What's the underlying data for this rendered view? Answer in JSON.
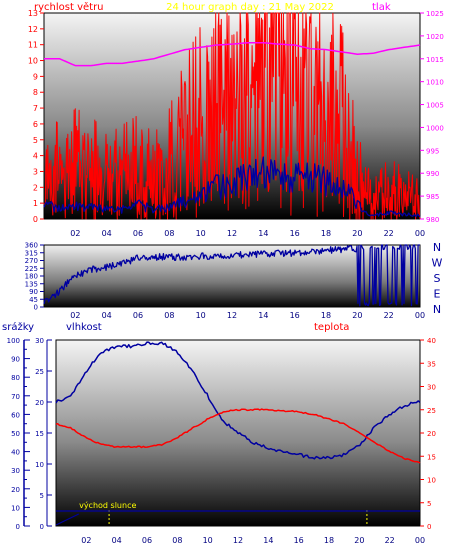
{
  "header": {
    "title": "24 hour graph day : 21 May 2022",
    "left_label": "rychlost větru",
    "right_label": "tlak",
    "direction_letters": [
      "N",
      "W",
      "S",
      "E",
      "N"
    ]
  },
  "colors": {
    "red": "#ff0000",
    "blue": "#0000a0",
    "magenta": "#ff00ff",
    "yellow": "#ffff00",
    "frame": "#000000",
    "sunrise_marker": "#ffff00"
  },
  "bottom_labels": {
    "precip": "srážky",
    "humidity": "vlhkost",
    "temp": "teplota",
    "sunrise_text": "východ slunce"
  },
  "chart_data": [
    {
      "type": "line",
      "title": "24 hour graph day : 21 May 2022",
      "x_ticks": [
        "02",
        "04",
        "06",
        "08",
        "10",
        "12",
        "14",
        "16",
        "18",
        "20",
        "22",
        "00"
      ],
      "y_left": {
        "label": "rychlost větru",
        "range": [
          0,
          13
        ],
        "ticks": [
          "0",
          "1",
          "2",
          "3",
          "4",
          "5",
          "6",
          "7",
          "8",
          "9",
          "10",
          "11",
          "12",
          "13"
        ]
      },
      "y_right": {
        "label": "tlak",
        "range": [
          980,
          1025
        ],
        "ticks": [
          "980",
          "985",
          "990",
          "995",
          "1000",
          "1005",
          "1010",
          "1015",
          "1020",
          "1025"
        ]
      },
      "series": [
        {
          "name": "rychlost větru",
          "axis": "left",
          "color": "#ff0000",
          "x": [
            0,
            1,
            2,
            3,
            4,
            5,
            6,
            7,
            8,
            9,
            10,
            11,
            12,
            13,
            14,
            15,
            16,
            17,
            18,
            19,
            20,
            20.5,
            21,
            22,
            23,
            24
          ],
          "y": [
            3,
            2.5,
            3,
            2.8,
            2.2,
            2.5,
            2.8,
            2.2,
            3,
            4.5,
            5.5,
            6.5,
            6.8,
            7.2,
            7.5,
            7.4,
            7,
            6.8,
            6.2,
            5.5,
            3,
            1.5,
            0.8,
            1.5,
            1.2,
            0.8
          ]
        },
        {
          "axis": "left",
          "color": "#0000a0",
          "x": [
            0,
            1,
            2,
            3,
            4,
            5,
            6,
            7,
            8,
            9,
            10,
            11,
            12,
            13,
            14,
            15,
            16,
            17,
            18,
            19,
            20,
            20.5,
            21,
            22,
            23,
            24
          ],
          "y": [
            1,
            0.6,
            0.9,
            0.7,
            0.6,
            0.6,
            0.9,
            0.6,
            0.7,
            1.2,
            1.5,
            2,
            2.2,
            2.6,
            2.8,
            2.9,
            2.7,
            2.6,
            2.4,
            2.2,
            1,
            0.4,
            0.2,
            0.4,
            0.3,
            0.2
          ]
        },
        {
          "name": "tlak",
          "axis": "right",
          "color": "#ff00ff",
          "x": [
            0,
            1,
            2,
            3,
            4,
            5,
            6,
            7,
            8,
            9,
            10,
            11,
            12,
            13,
            14,
            15,
            16,
            17,
            18,
            19,
            20,
            21,
            22,
            23,
            24
          ],
          "y": [
            1015,
            1015,
            1013.5,
            1013.5,
            1014,
            1014,
            1014.5,
            1015,
            1016,
            1017,
            1017.5,
            1018,
            1018.2,
            1018.5,
            1018.5,
            1018.2,
            1018,
            1017.2,
            1017,
            1016.5,
            1016,
            1016.2,
            1017,
            1017.5,
            1018
          ]
        }
      ]
    },
    {
      "type": "line",
      "title": "",
      "x_ticks": [
        "02",
        "04",
        "06",
        "08",
        "10",
        "12",
        "14",
        "16",
        "18",
        "20",
        "22",
        "00"
      ],
      "y_left": {
        "range": [
          0,
          360
        ],
        "ticks": [
          "0",
          "45",
          "90",
          "135",
          "180",
          "225",
          "270",
          "315",
          "360"
        ]
      },
      "y_right": {
        "labels": [
          "N",
          "W",
          "S",
          "E",
          "N"
        ]
      },
      "series": [
        {
          "color": "#0000a0",
          "x": [
            0,
            0.5,
            1,
            1.5,
            2,
            2.5,
            3,
            3.5,
            4,
            4.5,
            5,
            5.5,
            6,
            7,
            8,
            9,
            10,
            11,
            12,
            13,
            14,
            15,
            16,
            17,
            18,
            19,
            20,
            21,
            22,
            23,
            24
          ],
          "y": [
            30,
            60,
            90,
            140,
            180,
            200,
            215,
            225,
            230,
            240,
            250,
            265,
            285,
            290,
            290,
            292,
            295,
            297,
            300,
            305,
            308,
            310,
            315,
            320,
            330,
            335,
            340,
            345,
            350,
            352,
            355
          ]
        }
      ]
    },
    {
      "type": "line",
      "title": "",
      "x_ticks": [
        "02",
        "04",
        "06",
        "08",
        "10",
        "12",
        "14",
        "16",
        "18",
        "20",
        "22",
        "00"
      ],
      "y_precip": {
        "label": "srážky",
        "range": [
          0,
          100
        ],
        "ticks": [
          "0",
          "10",
          "20",
          "30",
          "40",
          "50",
          "60",
          "70",
          "80",
          "90",
          "100"
        ]
      },
      "y_humidity": {
        "label": "vlhkost",
        "range": [
          0,
          30
        ],
        "ticks": [
          "0",
          "5",
          "10",
          "15",
          "20",
          "25",
          "30"
        ]
      },
      "y_temp": {
        "label": "teplota",
        "range": [
          0,
          40
        ],
        "ticks": [
          "0",
          "5",
          "10",
          "15",
          "20",
          "25",
          "30",
          "35",
          "40"
        ]
      },
      "annotations": [
        {
          "text": "východ slunce",
          "x": 3.5,
          "color": "#ffff00"
        }
      ],
      "series": [
        {
          "name": "vlhkost",
          "axis": "humidity",
          "color": "#0000a0",
          "x": [
            0,
            1,
            2,
            3,
            4,
            5,
            6,
            7,
            8,
            9,
            10,
            11,
            12,
            13,
            14,
            15,
            16,
            17,
            18,
            19,
            20,
            21,
            22,
            23,
            24
          ],
          "y": [
            20,
            21,
            25,
            28,
            29,
            29,
            29.5,
            29.5,
            28,
            25,
            21,
            17,
            15,
            13.5,
            12.5,
            12,
            11.5,
            11,
            11,
            11.5,
            13,
            16,
            18,
            19.5,
            20
          ]
        },
        {
          "name": "teplota",
          "axis": "temp",
          "color": "#ff0000",
          "x": [
            0,
            1,
            2,
            3,
            4,
            5,
            6,
            7,
            8,
            9,
            10,
            11,
            12,
            13,
            14,
            15,
            16,
            17,
            18,
            19,
            20,
            21,
            22,
            23,
            24
          ],
          "y": [
            22,
            21,
            19,
            17.5,
            17,
            17,
            17,
            17.5,
            19,
            21,
            23,
            24.5,
            25,
            25,
            25,
            24.8,
            24.5,
            24,
            23,
            22,
            20,
            18,
            16,
            14.5,
            13.5
          ]
        },
        {
          "name": "srážky",
          "axis": "precip",
          "color": "#0000a0",
          "x": [
            0,
            24
          ],
          "y": [
            0,
            0
          ]
        }
      ]
    }
  ]
}
